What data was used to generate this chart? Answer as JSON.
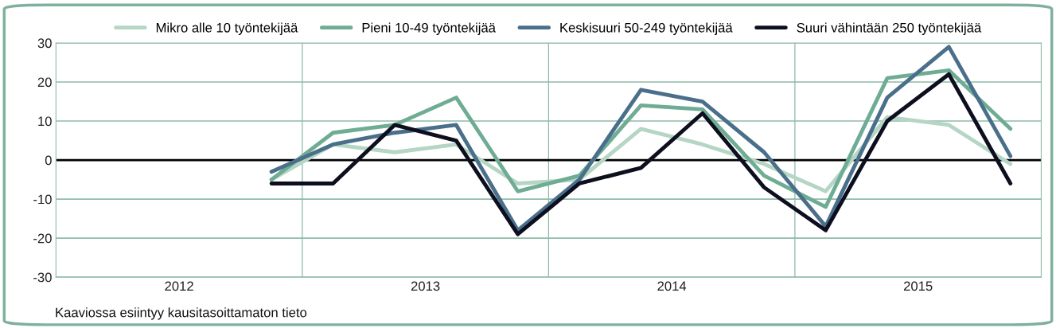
{
  "chart_data": {
    "type": "line",
    "x": [
      2012.875,
      2013.125,
      2013.375,
      2013.625,
      2013.875,
      2014.125,
      2014.375,
      2014.625,
      2014.875,
      2015.125,
      2015.375,
      2015.625,
      2015.875
    ],
    "series": [
      {
        "name": "Mikro alle 10 työntekijää",
        "color": "#b5d5c5",
        "values": [
          -5,
          4,
          2,
          4,
          -6,
          -5,
          8,
          4,
          -1,
          -8,
          11,
          9,
          -1
        ]
      },
      {
        "name": "Pieni 10-49 työntekijää",
        "color": "#6fac94",
        "values": [
          -5,
          7,
          9,
          16,
          -8,
          -4,
          14,
          13,
          -4,
          -12,
          21,
          23,
          8
        ]
      },
      {
        "name": "Keskisuuri 50-249 työntekijää",
        "color": "#4a6f8a",
        "values": [
          -3,
          4,
          7,
          9,
          -18,
          -5,
          18,
          15,
          2,
          -17,
          16,
          29,
          1
        ]
      },
      {
        "name": "Suuri vähintään 250 työntekijää",
        "color": "#0d0f1f",
        "values": [
          -6,
          -6,
          9,
          5,
          -19,
          -6,
          -2,
          12,
          -7,
          -18,
          10,
          22,
          -6
        ]
      }
    ],
    "xlim": [
      2012,
      2016
    ],
    "xticks": [
      {
        "value": 2012.5,
        "label": "2012"
      },
      {
        "value": 2013.5,
        "label": "2013"
      },
      {
        "value": 2014.5,
        "label": "2014"
      },
      {
        "value": 2015.5,
        "label": "2015"
      }
    ],
    "ylim": [
      -30,
      30
    ],
    "yticks": [
      -30,
      -20,
      -10,
      0,
      10,
      20,
      30
    ],
    "grid": "y",
    "legend": "top",
    "line_style": "solid",
    "marker": "none",
    "ref_lines": [
      {
        "axis": "x",
        "value": 2013,
        "color": "#8fbaa8"
      },
      {
        "axis": "x",
        "value": 2014,
        "color": "#8fbaa8"
      },
      {
        "axis": "x",
        "value": 2015,
        "color": "#8fbaa8"
      },
      {
        "axis": "y",
        "value": 0,
        "color": "#000000"
      }
    ],
    "annotations": [
      "Kaaviossa esiintyy kausitasoittamaton tieto"
    ]
  }
}
